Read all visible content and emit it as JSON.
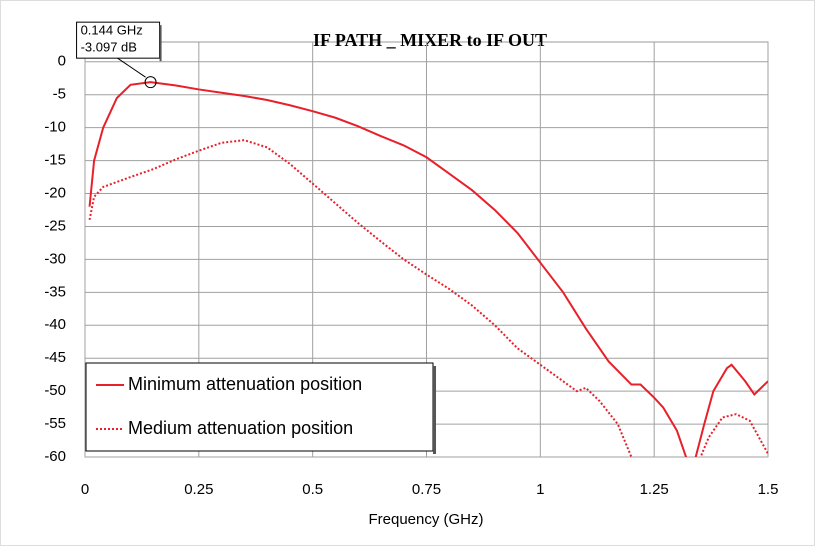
{
  "chart_data": {
    "type": "line",
    "title": "IF PATH _ MIXER to IF OUT",
    "xlabel": "Frequency (GHz)",
    "xlim": [
      0,
      1.5
    ],
    "xticks": [
      0,
      0.25,
      0.5,
      0.75,
      1,
      1.25,
      1.5
    ],
    "ylim": [
      -60,
      3
    ],
    "yticks": [
      0,
      -5,
      -10,
      -15,
      -20,
      -25,
      -30,
      -35,
      -40,
      -45,
      -50,
      -55,
      -60
    ],
    "grid": true,
    "legend": "lower left",
    "series": [
      {
        "name": "Minimum attenuation position",
        "color": "#e8202a",
        "linestyle": "solid",
        "x": [
          0.01,
          0.02,
          0.04,
          0.07,
          0.1,
          0.144,
          0.2,
          0.25,
          0.3,
          0.35,
          0.4,
          0.45,
          0.5,
          0.55,
          0.6,
          0.65,
          0.7,
          0.75,
          0.8,
          0.85,
          0.9,
          0.95,
          1.0,
          1.05,
          1.1,
          1.15,
          1.2,
          1.22,
          1.25,
          1.27,
          1.3,
          1.32,
          1.33,
          1.36,
          1.38,
          1.41,
          1.42,
          1.45,
          1.47,
          1.5
        ],
        "values": [
          -22,
          -15,
          -10,
          -5.5,
          -3.5,
          -3.097,
          -3.6,
          -4.2,
          -4.7,
          -5.2,
          -5.8,
          -6.6,
          -7.5,
          -8.5,
          -9.8,
          -11.3,
          -12.7,
          -14.5,
          -17,
          -19.5,
          -22.5,
          -26,
          -30.5,
          -35,
          -40.5,
          -45.5,
          -49,
          -49,
          -51,
          -52.5,
          -56,
          -60,
          -63,
          -55,
          -50,
          -46.5,
          -46,
          -48.5,
          -50.5,
          -48.5
        ]
      },
      {
        "name": "Medium attenuation position",
        "color": "#e8202a",
        "linestyle": "dotted",
        "x": [
          0.01,
          0.02,
          0.04,
          0.1,
          0.15,
          0.2,
          0.25,
          0.3,
          0.35,
          0.4,
          0.45,
          0.5,
          0.55,
          0.6,
          0.65,
          0.7,
          0.75,
          0.8,
          0.85,
          0.9,
          0.95,
          1.0,
          1.05,
          1.08,
          1.1,
          1.13,
          1.17,
          1.2,
          1.22,
          1.28,
          1.34,
          1.37,
          1.4,
          1.43,
          1.46,
          1.48,
          1.5
        ],
        "values": [
          -24,
          -20.5,
          -19,
          -17.5,
          -16.3,
          -14.8,
          -13.5,
          -12.3,
          -11.9,
          -13,
          -15.5,
          -18.5,
          -21.5,
          -24.5,
          -27.3,
          -30,
          -32.3,
          -34.5,
          -37,
          -40,
          -43.5,
          -46,
          -48.5,
          -50,
          -49.5,
          -51.5,
          -55,
          -60,
          -64,
          null,
          -62,
          -57,
          -54,
          -53.5,
          -54.5,
          -57,
          -59.5
        ]
      }
    ],
    "marker": {
      "x": 0.144,
      "y": -3.097,
      "labels": [
        "0.144 GHz",
        "-3.097 dB"
      ]
    }
  }
}
